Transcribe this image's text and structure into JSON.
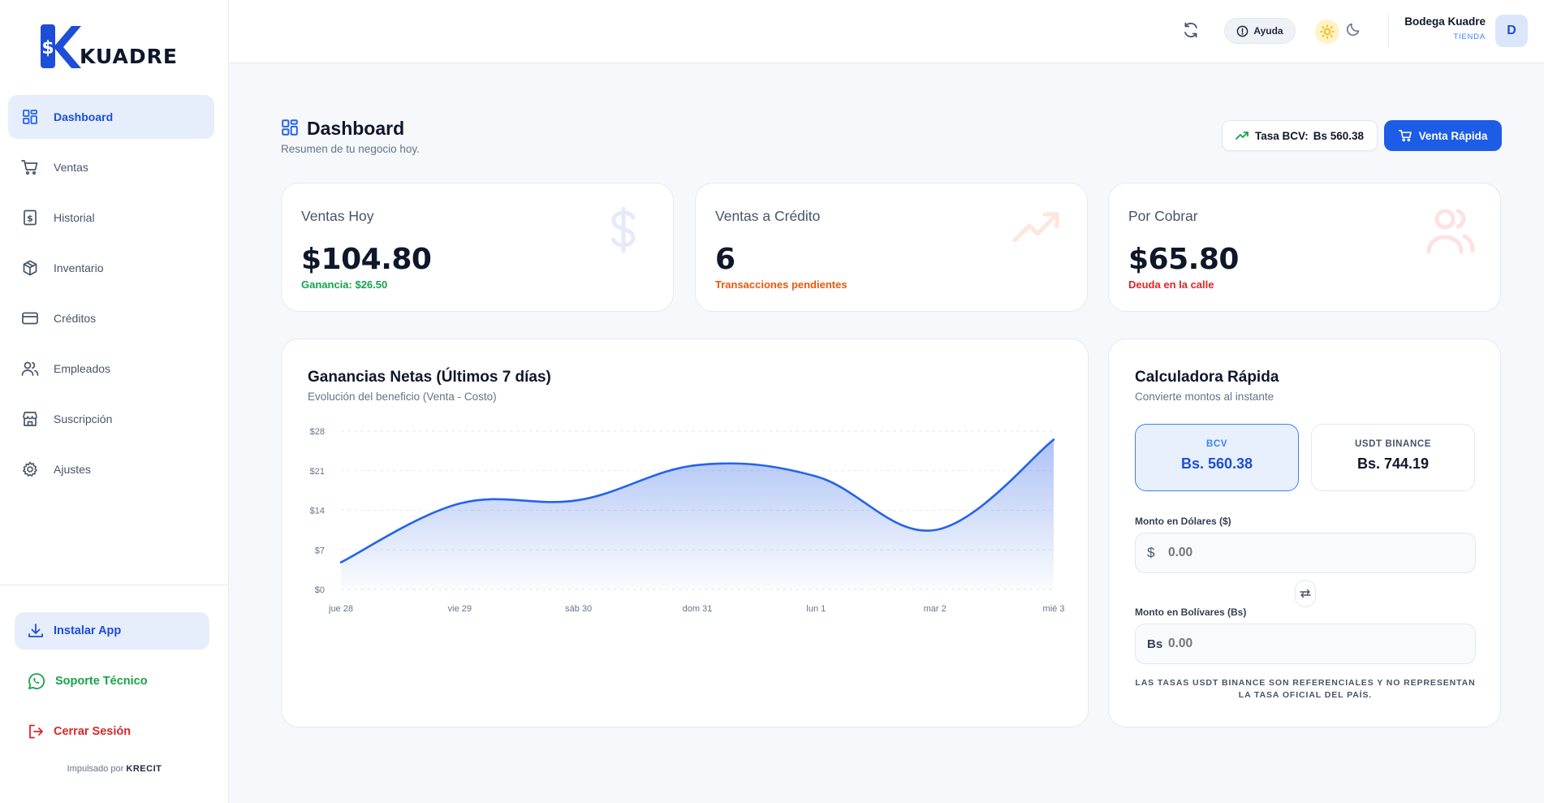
{
  "brand": {
    "name": "KUADRE",
    "logo_symbol": "$"
  },
  "sidebar": {
    "items": [
      {
        "label": "Dashboard",
        "icon": "dashboard-grid-icon",
        "active": true
      },
      {
        "label": "Ventas",
        "icon": "cart-icon"
      },
      {
        "label": "Historial",
        "icon": "receipt-icon"
      },
      {
        "label": "Inventario",
        "icon": "box-icon"
      },
      {
        "label": "Créditos",
        "icon": "credit-card-icon"
      },
      {
        "label": "Empleados",
        "icon": "users-icon"
      },
      {
        "label": "Suscripción",
        "icon": "store-icon"
      },
      {
        "label": "Ajustes",
        "icon": "gear-icon"
      }
    ],
    "install_label": "Instalar App",
    "support_label": "Soporte Técnico",
    "logout_label": "Cerrar Sesión",
    "powered_by": "Impulsado por",
    "powered_brand": "KRECIT"
  },
  "topbar": {
    "help_label": "Ayuda",
    "user_name": "Bodega Kuadre",
    "user_role": "TIENDA",
    "avatar_initial": "D"
  },
  "page": {
    "title": "Dashboard",
    "subtitle": "Resumen de tu negocio hoy.",
    "rate_label": "Tasa BCV:",
    "rate_value": "Bs 560.38",
    "quick_sale_label": "Venta Rápida"
  },
  "stats": [
    {
      "title": "Ventas Hoy",
      "value": "$104.80",
      "sub": "Ganancia: $26.50",
      "sub_color": "#16a34a",
      "icon": "dollar-icon"
    },
    {
      "title": "Ventas a Crédito",
      "value": "6",
      "sub": "Transacciones pendientes",
      "sub_color": "#ea580c",
      "icon": "trending-up-icon"
    },
    {
      "title": "Por Cobrar",
      "value": "$65.80",
      "sub": "Deuda en la calle",
      "sub_color": "#dc2626",
      "icon": "users-icon"
    }
  ],
  "chart": {
    "title": "Ganancias Netas (Últimos 7 días)",
    "subtitle": "Evolución del beneficio (Venta - Costo)"
  },
  "chart_data": {
    "type": "area",
    "categories": [
      "jue 28",
      "vie 29",
      "sáb 30",
      "dom 31",
      "lun 1",
      "mar 2",
      "mié 3"
    ],
    "values": [
      4.8,
      15.2,
      15.8,
      22,
      20,
      10.5,
      26.5
    ],
    "y_ticks": [
      "$0",
      "$7",
      "$14",
      "$21",
      "$28"
    ],
    "ylim": [
      0,
      28
    ],
    "grid": true,
    "line_color": "#2563eb",
    "fill_color": "#3b6de6"
  },
  "calculator": {
    "title": "Calculadora Rápida",
    "subtitle": "Convierte montos al instante",
    "rates": [
      {
        "label": "BCV",
        "value": "Bs. 560.38",
        "selected": true
      },
      {
        "label": "USDT BINANCE",
        "value": "Bs. 744.19",
        "selected": false
      }
    ],
    "usd_label": "Monto en Dólares ($)",
    "usd_prefix": "$",
    "usd_placeholder": "0.00",
    "bs_label": "Monto en Bolívares (Bs)",
    "bs_prefix": "Bs",
    "bs_placeholder": "0.00",
    "disclaimer": "Las tasas USDT Binance son referenciales y no representan la tasa oficial del país."
  },
  "colors": {
    "accent": "#2563eb",
    "success": "#16a34a",
    "warning": "#ea580c",
    "danger": "#dc2626"
  }
}
